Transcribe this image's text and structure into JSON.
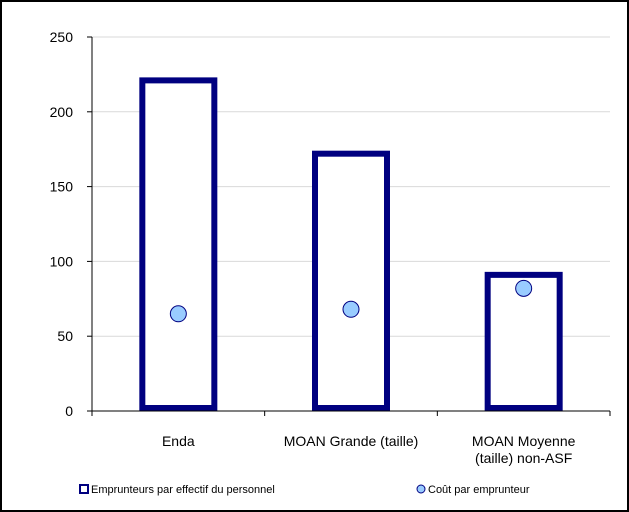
{
  "chart_data": {
    "type": "bar",
    "title": "",
    "xlabel": "",
    "ylabel": "",
    "ylim": [
      0,
      250
    ],
    "yticks": [
      "0",
      "50",
      "100",
      "150",
      "200",
      "250"
    ],
    "ytick_values": [
      0,
      50,
      100,
      150,
      200,
      250
    ],
    "grid": true,
    "legend_position": "bottom",
    "categories": [
      [
        "Enda"
      ],
      [
        "MOAN Grande (taille)"
      ],
      [
        "MOAN Moyenne",
        "(taille) non-ASF"
      ]
    ],
    "series": [
      {
        "name": "Emprunteurs par effectif du personnel",
        "type": "bar",
        "values": [
          221,
          172,
          91
        ],
        "color": "#000080"
      },
      {
        "name": "Coût par emprunteur",
        "type": "scatter",
        "values": [
          65,
          68,
          82
        ],
        "color": "#99CCFF"
      }
    ]
  }
}
